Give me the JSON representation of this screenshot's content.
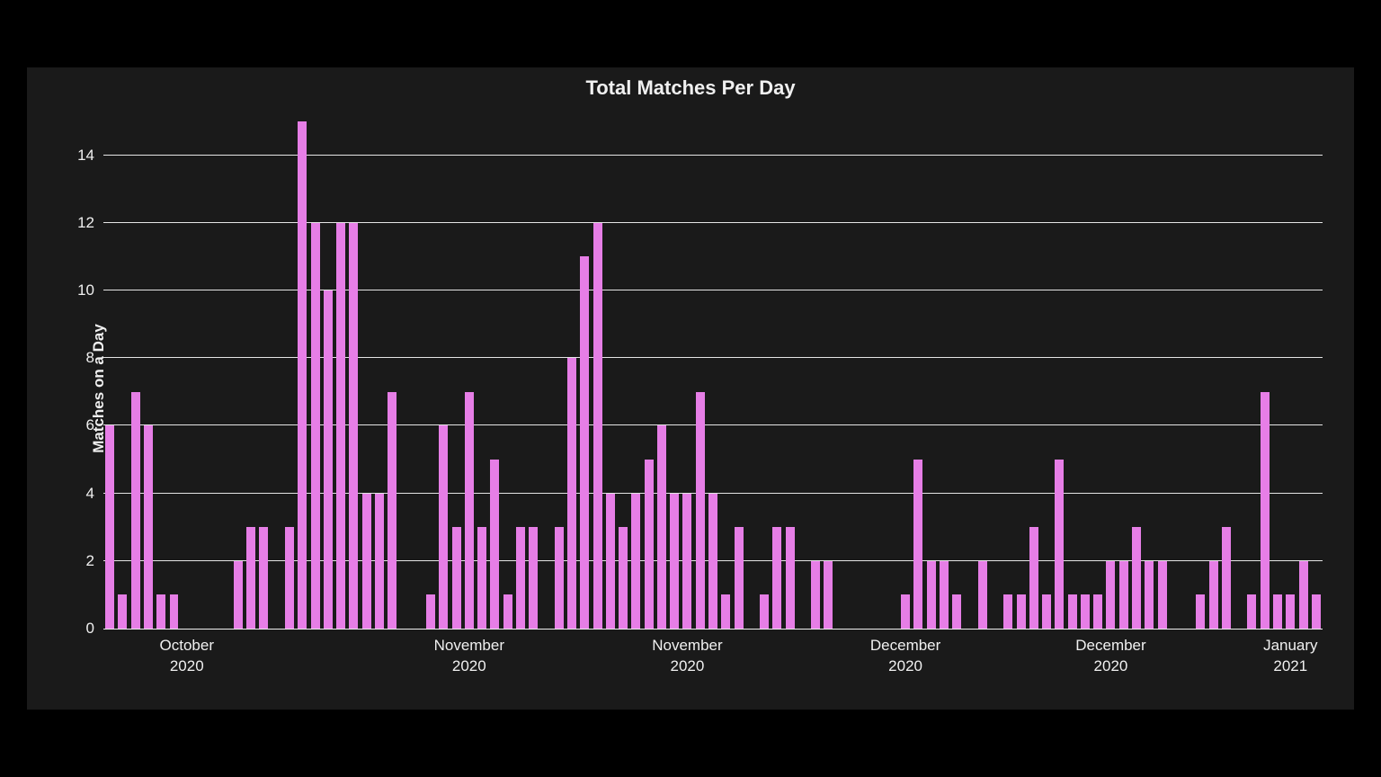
{
  "chart": {
    "type": "bar",
    "title": "Total Matches Per Day",
    "title_fontsize": 22,
    "ylabel": "Matches on a Day",
    "label_fontsize": 17,
    "background_color": "#1a1a1a",
    "outer_background_color": "#000000",
    "grid_color": "#f0f0f0",
    "text_color": "#f0f0f0",
    "bar_color": "#e67ee6",
    "ylim": [
      0,
      15
    ],
    "ytick_step": 2,
    "yticks": [
      0,
      2,
      4,
      6,
      8,
      10,
      12,
      14
    ],
    "bar_width_ratio": 0.7,
    "values": [
      6,
      1,
      7,
      6,
      1,
      1,
      0,
      0,
      0,
      0,
      2,
      3,
      3,
      0,
      3,
      15,
      12,
      10,
      12,
      12,
      4,
      4,
      7,
      0,
      0,
      1,
      6,
      3,
      7,
      3,
      5,
      1,
      3,
      3,
      0,
      3,
      8,
      11,
      12,
      4,
      3,
      4,
      5,
      6,
      4,
      4,
      7,
      4,
      1,
      3,
      0,
      1,
      3,
      3,
      0,
      2,
      2,
      0,
      0,
      0,
      0,
      0,
      1,
      5,
      2,
      2,
      1,
      0,
      2,
      0,
      1,
      1,
      3,
      1,
      5,
      1,
      1,
      1,
      2,
      2,
      3,
      2,
      2,
      0,
      0,
      1,
      2,
      3,
      0,
      1,
      7,
      1,
      1,
      2,
      1
    ],
    "n_bars": 95,
    "x_ticks": [
      {
        "index": 6,
        "line1": "October",
        "line2": "2020"
      },
      {
        "index": 28,
        "line1": "November",
        "line2": "2020"
      },
      {
        "index": 45,
        "line1": "November",
        "line2": "2020"
      },
      {
        "index": 62,
        "line1": "December",
        "line2": "2020"
      },
      {
        "index": 78,
        "line1": "December",
        "line2": "2020"
      },
      {
        "index": 92,
        "line1": "January",
        "line2": "2021"
      }
    ]
  }
}
